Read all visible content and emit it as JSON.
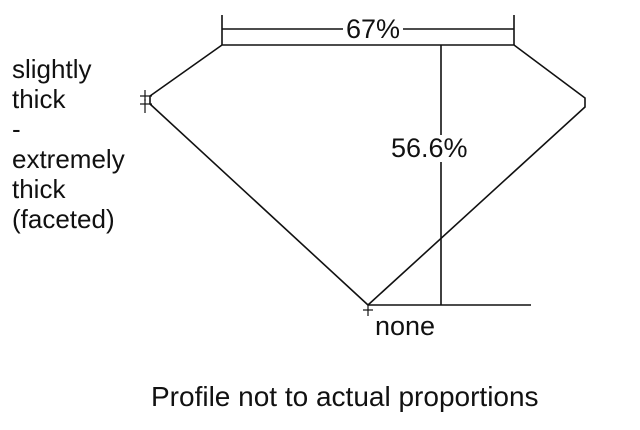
{
  "diagram": {
    "table_percent_label": "67%",
    "depth_percent_label": "56.6%",
    "girdle_label_lines": [
      "slightly",
      "thick",
      "-",
      "extremely",
      "thick",
      "(faceted)"
    ],
    "culet_label": "none",
    "footnote": "Profile not to actual proportions"
  }
}
